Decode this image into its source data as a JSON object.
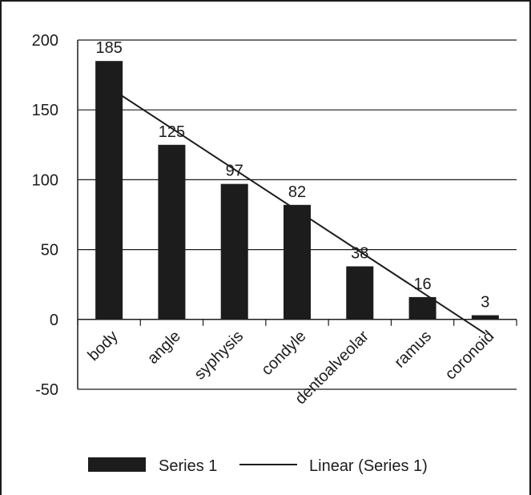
{
  "chart_data": {
    "type": "bar",
    "categories": [
      "body",
      "angle",
      "syphysis",
      "condyle",
      "dentoalveolar",
      "ramus",
      "coronoid"
    ],
    "series": [
      {
        "name": "Series 1",
        "values": [
          185,
          125,
          97,
          82,
          38,
          16,
          3
        ]
      }
    ],
    "trendline": {
      "type": "linear",
      "name": "Linear (Series 1)"
    },
    "ylim": [
      -50,
      200
    ],
    "yticks": [
      -50,
      0,
      50,
      100,
      150,
      200
    ],
    "grid": true,
    "legend_position": "bottom",
    "colors": {
      "bar": "#1c1c1c",
      "grid": "#1c1c1c",
      "line": "#1c1c1c"
    }
  }
}
